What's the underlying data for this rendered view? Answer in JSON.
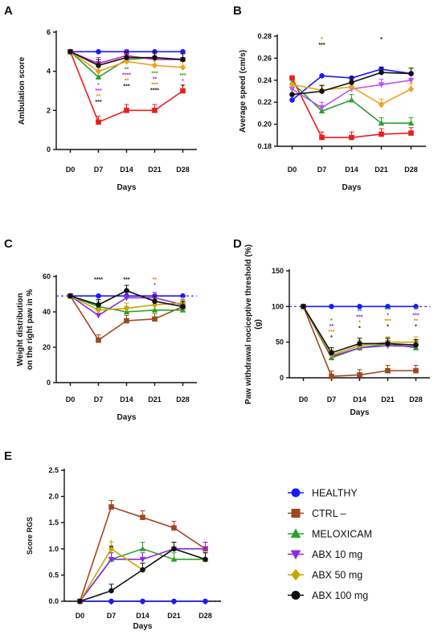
{
  "chart_data": [
    {
      "panel": "A",
      "type": "line",
      "ylabel": "Ambulation score",
      "xlabel": "Days",
      "categories": [
        "D0",
        "D7",
        "D14",
        "D21",
        "D28"
      ],
      "ylim": [
        0,
        6
      ],
      "yticks": [
        0,
        2,
        4,
        6
      ],
      "series": [
        {
          "name": "HEALTHY",
          "values": [
            5,
            5,
            5,
            5,
            5
          ]
        },
        {
          "name": "CTRL –",
          "values": [
            5,
            1.4,
            2,
            2,
            3
          ]
        },
        {
          "name": "MELOXICAM",
          "values": [
            5,
            3.7,
            4.6,
            4.7,
            4.6
          ]
        },
        {
          "name": "ABX 10 mg",
          "values": [
            5,
            4.4,
            4.8,
            4.6,
            4.6
          ]
        },
        {
          "name": "ABX 50 mg",
          "values": [
            5,
            4.0,
            4.5,
            4.3,
            4.2
          ]
        },
        {
          "name": "ABX 100 mg",
          "values": [
            5,
            4.3,
            4.7,
            4.7,
            4.6
          ]
        }
      ],
      "annotations": [
        {
          "x": "D7",
          "stars": [
            [
              "*",
              "#2ca02c"
            ],
            [
              "***",
              "#c020c0"
            ],
            [
              "**",
              "#e08a00"
            ],
            [
              "***",
              "#111111"
            ]
          ]
        },
        {
          "x": "D14",
          "stars": [
            [
              "**",
              "#2ca02c"
            ],
            [
              "****",
              "#c020c0"
            ],
            [
              "**",
              "#e08a00"
            ],
            [
              "***",
              "#111111"
            ]
          ]
        },
        {
          "x": "D21",
          "stars": [
            [
              "***",
              "#2ca02c"
            ],
            [
              "**",
              "#c020c0"
            ],
            [
              "***",
              "#e08a00"
            ],
            [
              "****",
              "#111111"
            ]
          ]
        },
        {
          "x": "D28",
          "stars": [
            [
              "***",
              "#2ca02c"
            ],
            [
              "*",
              "#c020c0"
            ],
            [
              "*",
              "#111111"
            ]
          ]
        }
      ]
    },
    {
      "panel": "B",
      "type": "line",
      "ylabel": "Average speed (cm/s)",
      "xlabel": "Days",
      "categories": [
        "D0",
        "D7",
        "D14",
        "D21",
        "D28"
      ],
      "ylim": [
        0.18,
        0.28
      ],
      "yticks": [
        0.18,
        0.2,
        0.22,
        0.24,
        0.26,
        0.28
      ],
      "series": [
        {
          "name": "HEALTHY",
          "values": [
            0.222,
            0.244,
            0.242,
            0.25,
            0.246
          ]
        },
        {
          "name": "CTRL –",
          "values": [
            0.242,
            0.188,
            0.188,
            0.191,
            0.192
          ]
        },
        {
          "name": "MELOXICAM",
          "values": [
            0.238,
            0.212,
            0.222,
            0.201,
            0.201
          ]
        },
        {
          "name": "ABX 10 mg",
          "values": [
            0.232,
            0.215,
            0.232,
            0.236,
            0.24
          ]
        },
        {
          "name": "ABX 50 mg",
          "values": [
            0.236,
            0.231,
            0.234,
            0.218,
            0.232
          ]
        },
        {
          "name": "ABX 100 mg",
          "values": [
            0.227,
            0.23,
            0.238,
            0.247,
            0.246
          ]
        }
      ],
      "annotations": [
        {
          "x": "D7",
          "stars": [
            [
              "*",
              "#e08a00"
            ],
            [
              "***",
              "#111111"
            ]
          ]
        },
        {
          "x": "D21",
          "stars": [
            [
              "*",
              "#111111"
            ]
          ]
        }
      ]
    },
    {
      "panel": "C",
      "type": "line",
      "ylabel": "Weight distribution on the right paw in %",
      "xlabel": "Days",
      "categories": [
        "D0",
        "D7",
        "D14",
        "D21",
        "D28"
      ],
      "ylim": [
        0,
        60
      ],
      "yticks": [
        0,
        20,
        40,
        60
      ],
      "series": [
        {
          "name": "HEALTHY",
          "values": [
            49,
            49,
            49,
            49,
            49
          ]
        },
        {
          "name": "CTRL –",
          "values": [
            49,
            24,
            35,
            36,
            43
          ]
        },
        {
          "name": "MELOXICAM",
          "values": [
            49,
            43,
            40,
            41,
            41
          ]
        },
        {
          "name": "ABX 10 mg",
          "values": [
            49,
            38,
            48,
            48,
            44
          ]
        },
        {
          "name": "ABX 50 mg",
          "values": [
            49,
            41,
            42,
            44,
            45
          ]
        },
        {
          "name": "ABX 100 mg",
          "values": [
            49,
            44,
            52,
            46,
            43
          ]
        }
      ],
      "annotations": [
        {
          "x": "D7",
          "stars": [
            [
              "****",
              "#111111"
            ]
          ]
        },
        {
          "x": "D14",
          "stars": [
            [
              "***",
              "#111111"
            ]
          ]
        },
        {
          "x": "D21",
          "stars": [
            [
              "**",
              "#e08a00"
            ],
            [
              "*",
              "#c020c0"
            ]
          ]
        }
      ]
    },
    {
      "panel": "D",
      "type": "line",
      "ylabel": "Paw withdrawal nociceptive threshold (%) (g)",
      "xlabel": "Days",
      "categories": [
        "D0",
        "D7",
        "D14",
        "D21",
        "D28"
      ],
      "ylim": [
        0,
        150
      ],
      "yticks": [
        0,
        50,
        100,
        150
      ],
      "series": [
        {
          "name": "HEALTHY",
          "values": [
            100,
            100,
            100,
            100,
            100
          ]
        },
        {
          "name": "CTRL –",
          "values": [
            100,
            2,
            4,
            10,
            10
          ]
        },
        {
          "name": "MELOXICAM",
          "values": [
            100,
            28,
            42,
            48,
            42
          ]
        },
        {
          "name": "ABX 10 mg",
          "values": [
            100,
            30,
            42,
            45,
            44
          ]
        },
        {
          "name": "ABX 50 mg",
          "values": [
            100,
            32,
            45,
            50,
            50
          ]
        },
        {
          "name": "ABX 100 mg",
          "values": [
            100,
            35,
            48,
            48,
            46
          ]
        }
      ],
      "annotations": [
        {
          "x": "D7",
          "stars": [
            [
              "*",
              "#2ca02c"
            ],
            [
              "**",
              "#8a2be2"
            ],
            [
              "***",
              "#e08a00"
            ],
            [
              "*",
              "#111111"
            ]
          ]
        },
        {
          "x": "D14",
          "stars": [
            [
              "**",
              "#2ca02c"
            ],
            [
              "***",
              "#8a2be2"
            ],
            [
              "*",
              "#e08a00"
            ],
            [
              "*",
              "#111111"
            ]
          ]
        },
        {
          "x": "D21",
          "stars": [
            [
              "***",
              "#2ca02c"
            ],
            [
              "*",
              "#8a2be2"
            ],
            [
              "***",
              "#e08a00"
            ],
            [
              "*",
              "#111111"
            ]
          ]
        },
        {
          "x": "D28",
          "stars": [
            [
              "**",
              "#2ca02c"
            ],
            [
              "***",
              "#8a2be2"
            ],
            [
              "**",
              "#e08a00"
            ],
            [
              "*",
              "#111111"
            ]
          ]
        }
      ]
    },
    {
      "panel": "E",
      "type": "line",
      "ylabel": "Score RGS",
      "xlabel": "Days",
      "categories": [
        "D0",
        "D7",
        "D14",
        "D21",
        "D28"
      ],
      "ylim": [
        0,
        2.5
      ],
      "yticks": [
        0.0,
        0.5,
        1.0,
        1.5,
        2.0,
        2.5
      ],
      "series": [
        {
          "name": "HEALTHY",
          "values": [
            0,
            0,
            0,
            0,
            0
          ]
        },
        {
          "name": "CTRL –",
          "values": [
            0,
            1.8,
            1.6,
            1.4,
            1.0
          ]
        },
        {
          "name": "MELOXICAM",
          "values": [
            0,
            0.8,
            1.0,
            0.8,
            0.8
          ]
        },
        {
          "name": "ABX 10 mg",
          "values": [
            0,
            0.8,
            0.8,
            1.0,
            1.0
          ]
        },
        {
          "name": "ABX 50 mg",
          "values": [
            0,
            1.0,
            0.6,
            1.0,
            0.8
          ]
        },
        {
          "name": "ABX 100 mg",
          "values": [
            0,
            0.2,
            0.6,
            1.0,
            0.8
          ]
        }
      ],
      "annotations": [
        {
          "x": "D7",
          "stars": [
            [
              "*",
              "#d4a800"
            ],
            [
              "**",
              "#111111"
            ]
          ]
        }
      ]
    }
  ],
  "legend": [
    {
      "name": "HEALTHY",
      "color": "#1a1aff",
      "marker": "circle"
    },
    {
      "name": "CTRL –",
      "color": "#a0461e",
      "marker": "square"
    },
    {
      "name": "MELOXICAM",
      "color": "#2ca02c",
      "marker": "triangle"
    },
    {
      "name": "ABX 10 mg",
      "color": "#8a2be2",
      "marker": "triangle-down"
    },
    {
      "name": "ABX 50 mg",
      "color": "#c8a800",
      "marker": "diamond"
    },
    {
      "name": "ABX 100 mg",
      "color": "#111111",
      "marker": "circle"
    }
  ],
  "panel_colors": {
    "A": [
      "#1a1aff",
      "#ee1c1c",
      "#2ca02c",
      "#c020c0",
      "#f0a020",
      "#111111"
    ],
    "B": [
      "#1a1aff",
      "#ee1c1c",
      "#2ca02c",
      "#c050f0",
      "#f0a020",
      "#111111"
    ],
    "C": [
      "#1a1aff",
      "#a0461e",
      "#2ca02c",
      "#8a2be2",
      "#c8a800",
      "#111111"
    ],
    "D": [
      "#1a1aff",
      "#a0461e",
      "#2ca02c",
      "#8a2be2",
      "#c8a800",
      "#111111"
    ],
    "E": [
      "#1a1aff",
      "#a0461e",
      "#2ca02c",
      "#8a2be2",
      "#c8a800",
      "#111111"
    ]
  }
}
